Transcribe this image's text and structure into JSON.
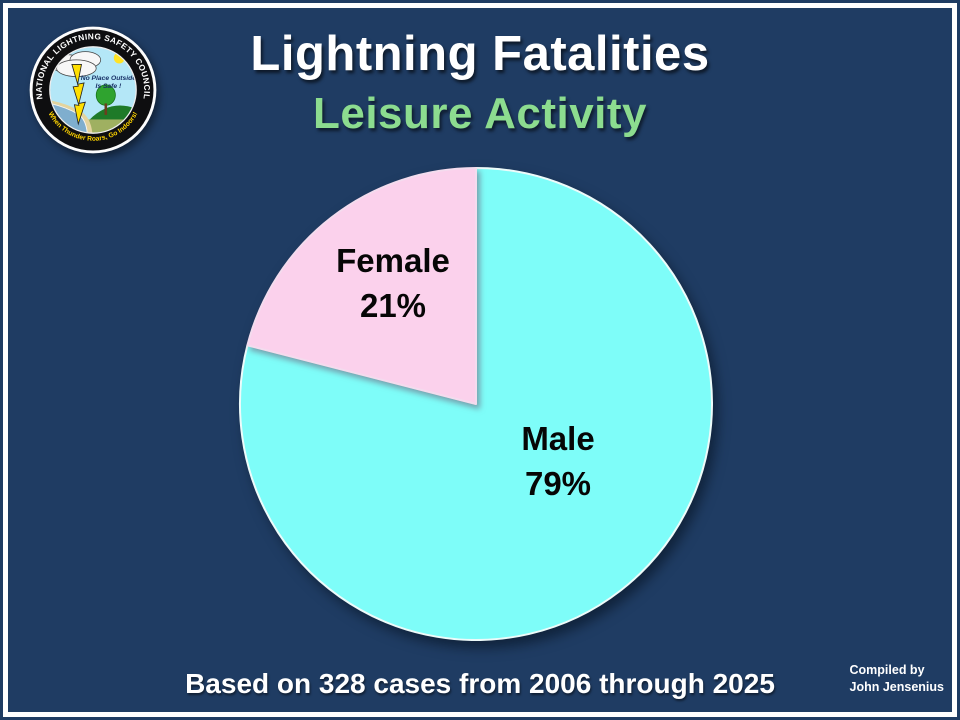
{
  "slide": {
    "background_color": "#1F3C63",
    "frame_color": "#FFFFFF"
  },
  "logo": {
    "name": "National Lightning Safety Council seal",
    "ring_text_top": "NATIONAL LIGHTNING SAFETY COUNCIL",
    "ring_text_bottom": "When Thunder Roars, Go Indoors!",
    "inner_text_line1": "No Place Outside",
    "inner_text_line2": "Is Safe !",
    "ring_text_color": "#FFFFFF",
    "ring_bottom_text_color": "#FFD400"
  },
  "header": {
    "title": "Lightning Fatalities",
    "subtitle": "Leisure Activity",
    "title_color": "#FFFFFF",
    "subtitle_color": "#8CDC8F"
  },
  "chart_data": {
    "type": "pie",
    "title": "Lightning Fatalities",
    "subtitle": "Leisure Activity",
    "categories": [
      "Male",
      "Female"
    ],
    "values": [
      79,
      21
    ],
    "unit": "%",
    "colors": [
      "#7EFDF9",
      "#FBD1EC"
    ],
    "slice_border_colors": [
      "#EDFBFA",
      "#F3DCEE"
    ],
    "start_angle_deg": 0,
    "direction": "clockwise",
    "legend": "none",
    "labels": [
      {
        "name": "Male",
        "value_text": "79%"
      },
      {
        "name": "Female",
        "value_text": "21%"
      }
    ],
    "source_note": "Based on 328 cases from 2006 through 2025"
  },
  "footer": {
    "note": "Based on 328 cases from 2006 through 2025",
    "credit_line1": "Compiled by",
    "credit_line2": "John Jensenius"
  }
}
